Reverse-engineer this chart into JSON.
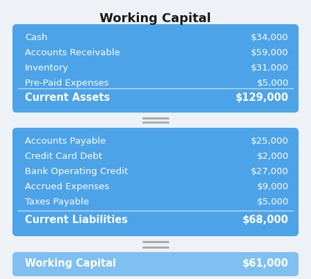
{
  "title": "Working Capital",
  "title_fontsize": 13,
  "title_color": "#1a1a1a",
  "background_color": "#eef2f7",
  "box_color_dark": "#4da3e8",
  "box_color_light": "#7fc0f0",
  "text_color_white": "#ffffff",
  "section1_items": [
    [
      "Cash",
      "$34,000"
    ],
    [
      "Accounts Receivable",
      "$59,000"
    ],
    [
      "Inventory",
      "$31,000"
    ],
    [
      "Pre-Paid Expenses",
      "$5,000"
    ]
  ],
  "section1_total_label": "Current Assets",
  "section1_total_value": "$129,000",
  "section2_items": [
    [
      "Accounts Payable",
      "$25,000"
    ],
    [
      "Credit Card Debt",
      "$2,000"
    ],
    [
      "Bank Operating Credit",
      "$27,000"
    ],
    [
      "Accrued Expenses",
      "$9,000"
    ],
    [
      "Taxes Payable",
      "$5,000"
    ]
  ],
  "section2_total_label": "Current Liabilities",
  "section2_total_value": "$68,000",
  "section3_label": "Working Capital",
  "section3_value": "$61,000",
  "item_fontsize": 9.5,
  "total_fontsize": 10.5,
  "summary_fontsize": 10.5
}
